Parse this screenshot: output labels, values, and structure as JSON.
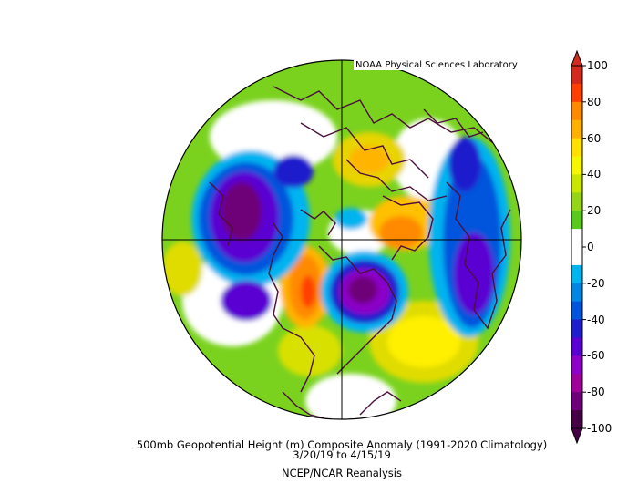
{
  "credit": "NOAA Physical Sciences Laboratory",
  "title_line1": "500mb Geopotential Height (m) Composite Anomaly (1991-2020 Climatology)",
  "title_line2": "3/20/19  to 4/15/19",
  "title_line3": "NCEP/NCAR Reanalysis",
  "colorbar": {
    "labels": [
      "100",
      "80",
      "60",
      "40",
      "20",
      "0",
      "-20",
      "-40",
      "-60",
      "-80",
      "-100"
    ],
    "colors": [
      "#d42a1e",
      "#ff4000",
      "#ff8a00",
      "#ffb000",
      "#ffe000",
      "#f6f600",
      "#c8e600",
      "#96d418",
      "#5ac81e",
      "#ffffff",
      "#ffffff",
      "#00b4f0",
      "#0087e6",
      "#0055dc",
      "#1e1ecd",
      "#5a00d2",
      "#8c00c8",
      "#a0009a",
      "#6e0078",
      "#460046"
    ]
  },
  "colors": {
    "land_outline": "#4b0f3c",
    "background": "#ffffff",
    "frame": "#000000"
  }
}
